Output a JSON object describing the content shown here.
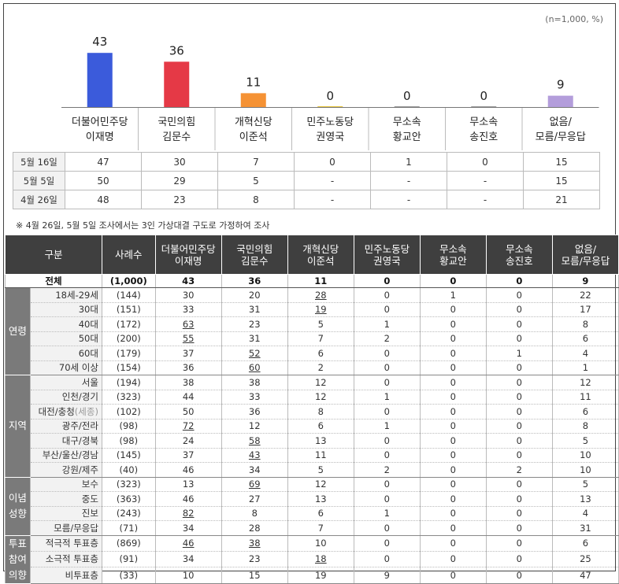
{
  "chart_data": {
    "type": "bar",
    "categories": [
      "더불어민주당\n이재명",
      "국민의힘\n김문수",
      "개혁신당\n이준석",
      "민주노동당\n권영국",
      "무소속\n황교안",
      "무소속\n송진호",
      "없음/\n모름/무응답"
    ],
    "values": [
      43,
      36,
      11,
      0,
      0,
      0,
      9
    ],
    "colors": [
      "#3b5bdb",
      "#e53946",
      "#f59234",
      "#e8c53a",
      "#999999",
      "#999999",
      "#b39ddb"
    ],
    "ylim": [
      0,
      50
    ],
    "grid": false,
    "note": "(n=1,000, %)"
  },
  "trend": {
    "rows": [
      {
        "label": "5월 16일",
        "values": [
          "47",
          "30",
          "7",
          "0",
          "1",
          "0",
          "15"
        ]
      },
      {
        "label": "5월 5일",
        "values": [
          "50",
          "29",
          "5",
          "-",
          "-",
          "-",
          "15"
        ]
      },
      {
        "label": "4월 26일",
        "values": [
          "48",
          "23",
          "8",
          "-",
          "-",
          "-",
          "21"
        ]
      }
    ]
  },
  "footnote": "※  4월 26일, 5월 5일 조사에서는 3인 가상대결 구도로 가정하여 조사",
  "table": {
    "headers": [
      "구분",
      "사례수",
      "더불어민주당\n이재명",
      "국민의힘\n김문수",
      "개혁신당\n이준석",
      "민주노동당\n권영국",
      "무소속\n황교안",
      "무소속\n송진호",
      "없음/\n모름/무응답"
    ],
    "total": {
      "label": "전체",
      "n": "(1,000)",
      "values": [
        "43",
        "36",
        "11",
        "0",
        "0",
        "0",
        "9"
      ]
    },
    "groups": [
      {
        "name": "연령",
        "rows": [
          {
            "label": "18세-29세",
            "n": "(144)",
            "values": [
              "30",
              "20",
              "28",
              "0",
              "1",
              "0",
              "22"
            ],
            "u": [
              2
            ]
          },
          {
            "label": "30대",
            "n": "(151)",
            "values": [
              "33",
              "31",
              "19",
              "0",
              "0",
              "0",
              "17"
            ],
            "u": [
              2
            ]
          },
          {
            "label": "40대",
            "n": "(172)",
            "values": [
              "63",
              "23",
              "5",
              "1",
              "0",
              "0",
              "8"
            ],
            "u": [
              0
            ]
          },
          {
            "label": "50대",
            "n": "(200)",
            "values": [
              "55",
              "31",
              "7",
              "2",
              "0",
              "0",
              "6"
            ],
            "u": [
              0
            ]
          },
          {
            "label": "60대",
            "n": "(179)",
            "values": [
              "37",
              "52",
              "6",
              "0",
              "0",
              "1",
              "4"
            ],
            "u": [
              1
            ]
          },
          {
            "label": "70세 이상",
            "n": "(154)",
            "values": [
              "36",
              "60",
              "2",
              "0",
              "0",
              "0",
              "1"
            ],
            "u": [
              1
            ]
          }
        ]
      },
      {
        "name": "지역",
        "rows": [
          {
            "label": "서울",
            "n": "(194)",
            "values": [
              "38",
              "38",
              "12",
              "0",
              "0",
              "0",
              "12"
            ],
            "u": []
          },
          {
            "label": "인천/경기",
            "n": "(323)",
            "values": [
              "44",
              "33",
              "12",
              "1",
              "0",
              "0",
              "11"
            ],
            "u": []
          },
          {
            "label": "대전/충청",
            "label_extra": "(세종)",
            "n": "(102)",
            "values": [
              "50",
              "36",
              "8",
              "0",
              "0",
              "0",
              "6"
            ],
            "u": []
          },
          {
            "label": "광주/전라",
            "n": "(98)",
            "values": [
              "72",
              "12",
              "6",
              "1",
              "0",
              "0",
              "8"
            ],
            "u": [
              0
            ]
          },
          {
            "label": "대구/경북",
            "n": "(98)",
            "values": [
              "24",
              "58",
              "13",
              "0",
              "0",
              "0",
              "5"
            ],
            "u": [
              1
            ]
          },
          {
            "label": "부산/울산/경남",
            "n": "(145)",
            "values": [
              "37",
              "43",
              "11",
              "0",
              "0",
              "0",
              "10"
            ],
            "u": [
              1
            ]
          },
          {
            "label": "강원/제주",
            "n": "(40)",
            "values": [
              "46",
              "34",
              "5",
              "2",
              "0",
              "2",
              "10"
            ],
            "u": []
          }
        ]
      },
      {
        "name": "이념\n성향",
        "rows": [
          {
            "label": "보수",
            "n": "(323)",
            "values": [
              "13",
              "69",
              "12",
              "0",
              "0",
              "0",
              "5"
            ],
            "u": [
              1
            ]
          },
          {
            "label": "중도",
            "n": "(363)",
            "values": [
              "46",
              "27",
              "13",
              "0",
              "0",
              "0",
              "13"
            ],
            "u": []
          },
          {
            "label": "진보",
            "n": "(243)",
            "values": [
              "82",
              "8",
              "6",
              "1",
              "0",
              "0",
              "4"
            ],
            "u": [
              0
            ]
          },
          {
            "label": "모름/무응답",
            "n": "(71)",
            "values": [
              "34",
              "28",
              "7",
              "0",
              "0",
              "0",
              "31"
            ],
            "u": []
          }
        ]
      },
      {
        "name": "투표\n참여\n의향",
        "rows": [
          {
            "label": "적극적 투표층",
            "n": "(869)",
            "values": [
              "46",
              "38",
              "10",
              "0",
              "0",
              "0",
              "6"
            ],
            "u": [
              0,
              1
            ]
          },
          {
            "label": "소극적 투표층",
            "n": "(91)",
            "values": [
              "34",
              "23",
              "18",
              "0",
              "0",
              "0",
              "25"
            ],
            "u": [
              2
            ]
          },
          {
            "label": "비투표층",
            "n": "(33)",
            "values": [
              "10",
              "15",
              "19",
              "9",
              "0",
              "0",
              "47"
            ],
            "u": []
          }
        ]
      }
    ]
  }
}
